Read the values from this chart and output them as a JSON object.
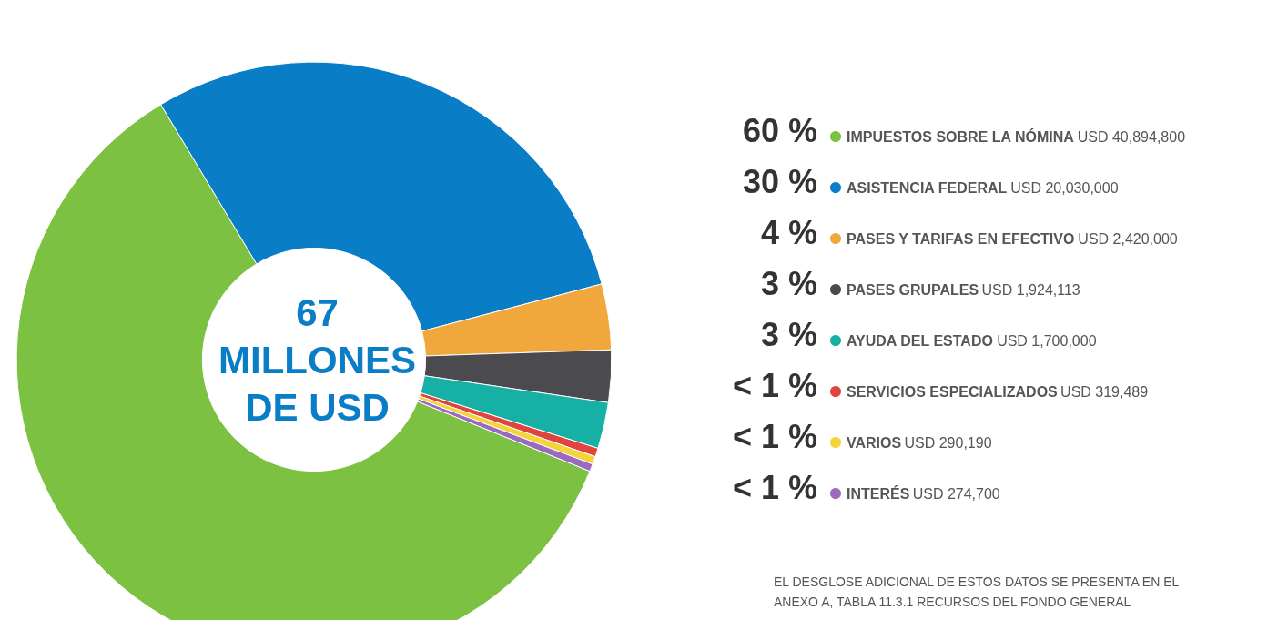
{
  "chart_data": {
    "type": "donut",
    "categories": [
      "IMPUESTOS SOBRE LA NÓMINA",
      "ASISTENCIA FEDERAL",
      "PASES Y TARIFAS EN EFECTIVO",
      "PASES GRUPALES",
      "AYUDA DEL ESTADO",
      "SERVICIOS ESPECIALIZADOS",
      "VARIOS",
      "INTERÉS"
    ],
    "values": [
      40894800,
      20030000,
      2420000,
      1924113,
      1700000,
      319489,
      290190,
      274700
    ],
    "value_labels": [
      "USD 40,894,800",
      "USD 20,030,000",
      "USD 2,420,000",
      "USD 1,924,113",
      "USD 1,700,000",
      "USD 319,489",
      "USD 290,190",
      "USD 274,700"
    ],
    "colors": [
      "#7dc142",
      "#0a7dc7",
      "#f0a73c",
      "#4a4a4f",
      "#17b0a4",
      "#e0453d",
      "#f5d33a",
      "#9b6ac0"
    ],
    "legend": "right",
    "annotations": [
      {
        "text": "60 %",
        "x": "IMPUESTOS SOBRE LA NÓMINA"
      },
      {
        "text": "30 %",
        "x": "ASISTENCIA FEDERAL"
      },
      {
        "text": "4 %",
        "x": "PASES Y TARIFAS EN EFECTIVO"
      },
      {
        "text": "3 %",
        "x": "PASES GRUPALES"
      },
      {
        "text": "3 %",
        "x": "AYUDA DEL ESTADO"
      },
      {
        "text": "< 1 %",
        "x": "SERVICIOS ESPECIALIZADOS"
      },
      {
        "text": "< 1 %",
        "x": "VARIOS"
      },
      {
        "text": "< 1 %",
        "x": "INTERÉS"
      },
      "67\nMILLONES\nDE USD",
      "EL DESGLOSE ADICIONAL DE ESTOS DATOS SE PRESENTA EN EL\nANEXO A, TABLA 11.3.1 RECURSOS DEL FONDO GENERAL"
    ]
  }
}
